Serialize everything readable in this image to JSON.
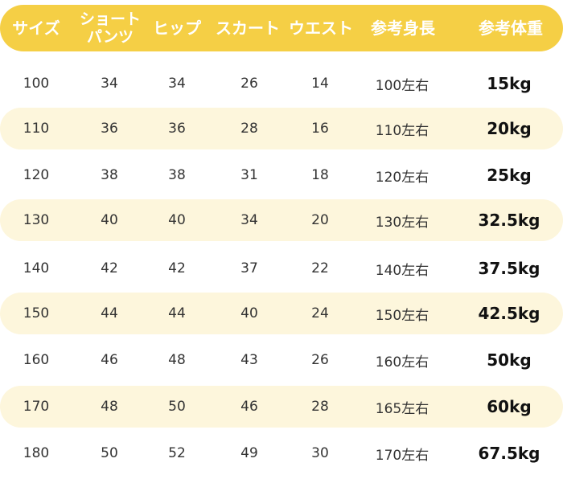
{
  "header": {
    "size": "サイズ",
    "short_pants_line1": "ショート",
    "short_pants_line2": "パンツ",
    "hip": "ヒップ",
    "skirt": "スカート",
    "waist": "ウエスト",
    "ref_height": "参考身長",
    "ref_weight": "参考体重"
  },
  "colors": {
    "header_bg": "#f5cf45",
    "header_text": "#ffffff",
    "row_shade": "#fdf6dc"
  },
  "rows": [
    {
      "size": "100",
      "short_pants": "34",
      "hip": "34",
      "skirt": "26",
      "waist": "14",
      "height": "100左右",
      "weight": "15kg"
    },
    {
      "size": "110",
      "short_pants": "36",
      "hip": "36",
      "skirt": "28",
      "waist": "16",
      "height": "110左右",
      "weight": "20kg"
    },
    {
      "size": "120",
      "short_pants": "38",
      "hip": "38",
      "skirt": "31",
      "waist": "18",
      "height": "120左右",
      "weight": "25kg"
    },
    {
      "size": "130",
      "short_pants": "40",
      "hip": "40",
      "skirt": "34",
      "waist": "20",
      "height": "130左右",
      "weight": "32.5kg"
    },
    {
      "size": "140",
      "short_pants": "42",
      "hip": "42",
      "skirt": "37",
      "waist": "22",
      "height": "140左右",
      "weight": "37.5kg"
    },
    {
      "size": "150",
      "short_pants": "44",
      "hip": "44",
      "skirt": "40",
      "waist": "24",
      "height": "150左右",
      "weight": "42.5kg"
    },
    {
      "size": "160",
      "short_pants": "46",
      "hip": "48",
      "skirt": "43",
      "waist": "26",
      "height": "160左右",
      "weight": "50kg"
    },
    {
      "size": "170",
      "short_pants": "48",
      "hip": "50",
      "skirt": "46",
      "waist": "28",
      "height": "165左右",
      "weight": "60kg"
    },
    {
      "size": "180",
      "short_pants": "50",
      "hip": "52",
      "skirt": "49",
      "waist": "30",
      "height": "170左右",
      "weight": "67.5kg"
    }
  ]
}
